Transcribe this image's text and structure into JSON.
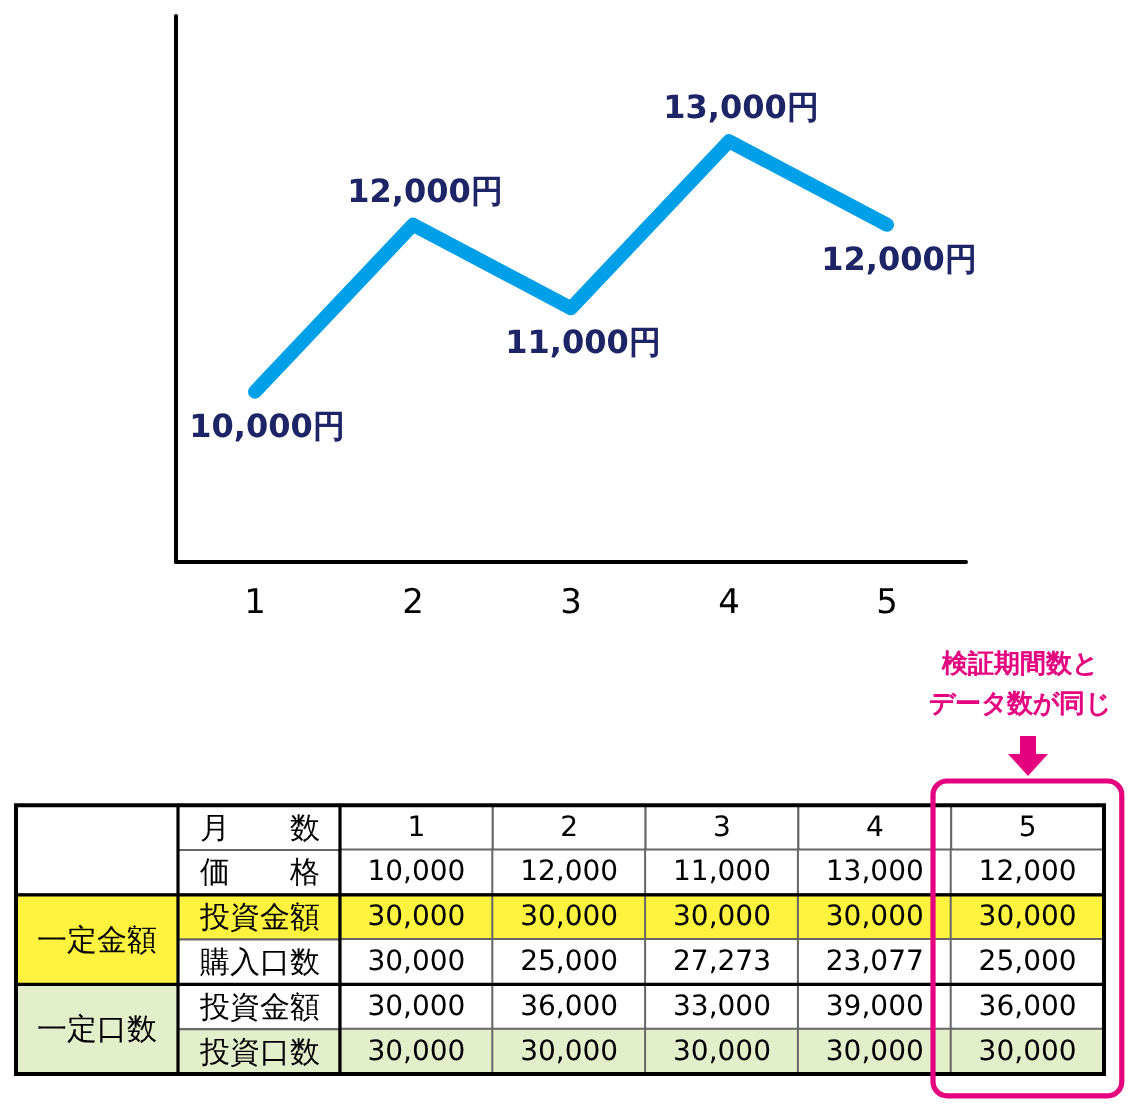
{
  "chart_data": [
    {
      "type": "line",
      "categories": [
        "1",
        "2",
        "3",
        "4",
        "5"
      ],
      "values": [
        10000,
        12000,
        11000,
        13000,
        12000
      ],
      "color": "#00a0e9",
      "value_labels": [
        "10,000円",
        "12,000円",
        "11,000円",
        "13,000円",
        "12,000円"
      ],
      "marker": "none",
      "tick_labels": "x"
    },
    {
      "type": "heatmap",
      "xlabel": "月　　数",
      "categories": [
        "1",
        "2",
        "3",
        "4",
        "5"
      ],
      "y_categories": [
        "価　　格",
        "投資金額",
        "購入口数",
        "投資金額",
        "投資口数"
      ],
      "y2_categories": [
        null,
        "一定金額",
        null,
        "一定口数",
        null
      ],
      "cells": [
        [
          10000,
          12000,
          11000,
          13000,
          12000
        ],
        [
          30000,
          30000,
          30000,
          30000,
          30000
        ],
        [
          30000,
          25000,
          27273,
          23077,
          25000
        ],
        [
          30000,
          36000,
          33000,
          39000,
          36000
        ],
        [
          30000,
          30000,
          30000,
          30000,
          30000
        ]
      ],
      "cell_labels": [
        [
          "10,000",
          "12,000",
          "11,000",
          "13,000",
          "12,000"
        ],
        [
          "30,000",
          "30,000",
          "30,000",
          "30,000",
          "30,000"
        ],
        [
          "30,000",
          "25,000",
          "27,273",
          "23,077",
          "25,000"
        ],
        [
          "30,000",
          "36,000",
          "33,000",
          "39,000",
          "36,000"
        ],
        [
          "30,000",
          "30,000",
          "30,000",
          "30,000",
          "30,000"
        ]
      ],
      "colors": [
        [
          "#ffffff",
          "#ffffff",
          "#ffffff",
          "#ffffff",
          "#ffffff"
        ],
        [
          "#fff33f",
          "#fff33f",
          "#fff33f",
          "#fff33f",
          "#fff33f"
        ],
        [
          "#ffffff",
          "#ffffff",
          "#ffffff",
          "#ffffff",
          "#ffffff"
        ],
        [
          "#ffffff",
          "#ffffff",
          "#ffffff",
          "#ffffff",
          "#ffffff"
        ],
        [
          "#e3efca",
          "#e3efca",
          "#e3efca",
          "#e3efca",
          "#e3efca"
        ]
      ],
      "annotations": [
        "検証期間数とデータ数が同じ"
      ]
    }
  ]
}
